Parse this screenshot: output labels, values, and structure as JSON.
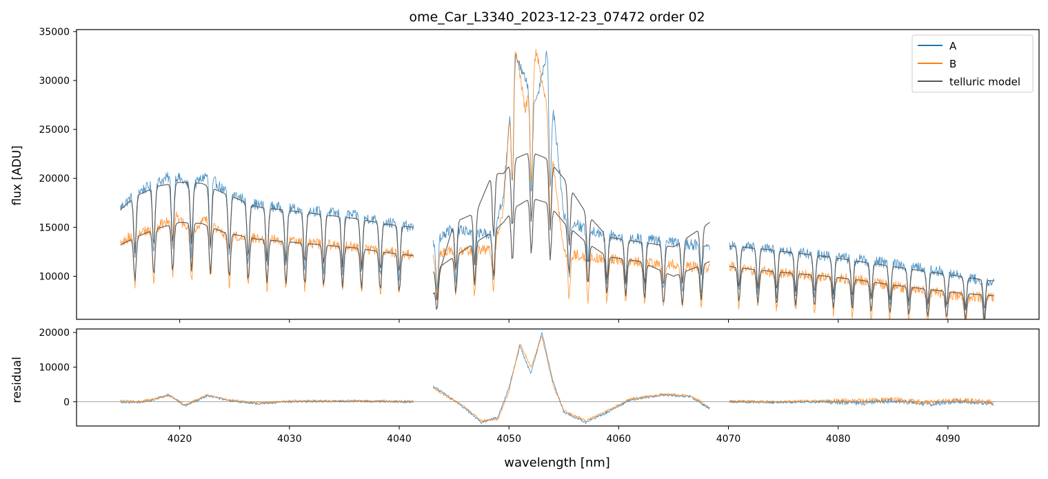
{
  "title": "ome_Car_L3340_2023-12-23_07472  order 02",
  "colors": {
    "A": "#1f77b4",
    "B": "#ff7f0e",
    "telluric": "#555555",
    "zero_line": "#808080"
  },
  "chart_data": [
    {
      "type": "line",
      "panel": "top",
      "title": "ome_Car_L3340_2023-12-23_07472  order 02",
      "xlabel": "",
      "ylabel": "flux [ADU]",
      "xlim": [
        4010.6,
        4098.3
      ],
      "ylim": [
        5600,
        35200
      ],
      "yticks": [
        10000,
        15000,
        20000,
        25000,
        30000,
        35000
      ],
      "xticks": [
        4020,
        4030,
        4040,
        4050,
        4060,
        4070,
        4080,
        4090
      ],
      "xticklabels_shown": false,
      "grid": false,
      "legend": {
        "placement": "top-right",
        "entries": [
          "A",
          "B",
          "telluric model"
        ]
      },
      "segments": [
        {
          "x_range": [
            4014.6,
            4041.3
          ],
          "series": [
            {
              "name": "A",
              "x": [
                4014.6,
                4016,
                4018,
                4019.5,
                4021,
                4022.5,
                4024,
                4027,
                4030,
                4033,
                4036,
                4039,
                4041.3
              ],
              "y": [
                17000,
                18500,
                19600,
                20400,
                19100,
                20400,
                18800,
                17300,
                16900,
                16600,
                16200,
                15500,
                15000
              ]
            },
            {
              "name": "B",
              "x": [
                4014.6,
                4016,
                4018,
                4019.5,
                4021,
                4022.5,
                4024,
                4027,
                4030,
                4033,
                4036,
                4039,
                4041.3
              ],
              "y": [
                13500,
                14300,
                15000,
                16300,
                14600,
                15800,
                14200,
                13900,
                13600,
                13300,
                13000,
                12500,
                12100
              ]
            },
            {
              "name": "telluric model",
              "x": [
                4014.6,
                4016,
                4018,
                4020,
                4022,
                4024,
                4027,
                4030,
                4033,
                4036,
                4039,
                4041.3
              ],
              "y": [
                16800,
                18200,
                19200,
                19600,
                19500,
                18500,
                17100,
                16700,
                16300,
                15900,
                15300,
                15000
              ]
            },
            {
              "name": "telluric model",
              "x": [
                4014.6,
                4016,
                4018,
                4020,
                4022,
                4024,
                4027,
                4030,
                4033,
                4036,
                4039,
                4041.3
              ],
              "y": [
                13200,
                14000,
                14900,
                15500,
                15400,
                14500,
                13800,
                13500,
                13200,
                12900,
                12400,
                12100
              ]
            }
          ]
        },
        {
          "x_range": [
            4043.1,
            4068.3
          ],
          "series": [
            {
              "name": "A",
              "x": [
                4043.1,
                4045,
                4047,
                4048.5,
                4049.5,
                4050.5,
                4051.5,
                4052.5,
                4053.5,
                4054.5,
                4055,
                4057,
                4060,
                4064,
                4068.3
              ],
              "y": [
                13500,
                15000,
                14500,
                14300,
                18000,
                33000,
                30000,
                28000,
                33000,
                22000,
                16000,
                14800,
                14000,
                13600,
                13000
              ]
            },
            {
              "name": "B",
              "x": [
                4043.1,
                4045,
                4047,
                4048.5,
                4049.5,
                4050.5,
                4051.5,
                4052.5,
                4053.5,
                4054.5,
                4055,
                4057,
                4060,
                4064,
                4068.3
              ],
              "y": [
                12000,
                12800,
                12600,
                12700,
                16500,
                34000,
                27000,
                33000,
                27000,
                17000,
                12500,
                12000,
                11700,
                11300,
                10800
              ]
            },
            {
              "name": "telluric model",
              "x": [
                4043.1,
                4045,
                4047,
                4048.5,
                4049.5,
                4050.5,
                4052,
                4053.5,
                4055,
                4057,
                4059,
                4062,
                4065,
                4068.3
              ],
              "y": [
                8200,
                15500,
                16500,
                20500,
                20500,
                22000,
                22700,
                22000,
                20000,
                16500,
                14000,
                13500,
                13000,
                15500
              ]
            },
            {
              "name": "telluric model",
              "x": [
                4043.1,
                4045,
                4047,
                4048.5,
                4049.5,
                4050.5,
                4052,
                4053.5,
                4055,
                4057,
                4059,
                4062,
                4065,
                4068.3
              ],
              "y": [
                10500,
                12000,
                13500,
                14500,
                15500,
                17000,
                18000,
                17500,
                15500,
                13500,
                12000,
                11500,
                10000,
                11500
              ]
            }
          ]
        },
        {
          "x_range": [
            4070.1,
            4094.2
          ],
          "series": [
            {
              "name": "A",
              "x": [
                4070.1,
                4073,
                4076,
                4079,
                4082,
                4085,
                4088,
                4091,
                4094.2
              ],
              "y": [
                13200,
                12900,
                12500,
                12100,
                11700,
                11300,
                10800,
                10100,
                9300
              ]
            },
            {
              "name": "B",
              "x": [
                4070.1,
                4073,
                4076,
                4079,
                4082,
                4085,
                4088,
                4091,
                4094.2
              ],
              "y": [
                11000,
                10500,
                10200,
                9900,
                9600,
                9000,
                8500,
                8000,
                7800
              ]
            },
            {
              "name": "telluric model",
              "x": [
                4070.1,
                4073,
                4076,
                4079,
                4082,
                4085,
                4088,
                4091,
                4094.2
              ],
              "y": [
                13100,
                12800,
                12400,
                12000,
                11500,
                11000,
                10500,
                10000,
                9500
              ]
            },
            {
              "name": "telluric model",
              "x": [
                4070.1,
                4073,
                4076,
                4079,
                4082,
                4085,
                4088,
                4091,
                4094.2
              ],
              "y": [
                11000,
                10600,
                10300,
                10000,
                9600,
                9100,
                8700,
                8300,
                8000
              ]
            }
          ]
        }
      ]
    },
    {
      "type": "line",
      "panel": "bottom",
      "xlabel": "wavelength [nm]",
      "ylabel": "residual",
      "xlim": [
        4010.6,
        4098.3
      ],
      "ylim": [
        -7000,
        21000
      ],
      "yticks": [
        0,
        10000,
        20000
      ],
      "xticks": [
        4020,
        4030,
        4040,
        4050,
        4060,
        4070,
        4080,
        4090
      ],
      "zero_line": true,
      "grid": false,
      "segments": [
        {
          "x_range": [
            4014.6,
            4041.3
          ],
          "series": [
            {
              "name": "A",
              "x": [
                4014.6,
                4016,
                4017.5,
                4019,
                4020.5,
                4022.5,
                4024.5,
                4027,
                4030,
                4035,
                4041.3
              ],
              "y": [
                0,
                -300,
                500,
                2000,
                -1200,
                1800,
                300,
                -500,
                0,
                200,
                0
              ]
            },
            {
              "name": "B",
              "x": [
                4014.6,
                4016,
                4017.5,
                4019,
                4020.5,
                4022.5,
                4024.5,
                4027,
                4030,
                4035,
                4041.3
              ],
              "y": [
                300,
                0,
                600,
                1900,
                -900,
                2000,
                500,
                -300,
                200,
                300,
                100
              ]
            }
          ]
        },
        {
          "x_range": [
            4043.1,
            4068.3
          ],
          "series": [
            {
              "name": "A",
              "x": [
                4043.1,
                4044.5,
                4046,
                4047.5,
                4049,
                4050,
                4051,
                4052,
                4053,
                4054,
                4055,
                4057,
                4059,
                4061,
                4064,
                4066.5,
                4068.3
              ],
              "y": [
                4500,
                1500,
                -2000,
                -6000,
                -4500,
                4000,
                16000,
                8000,
                20000,
                6000,
                -3000,
                -6000,
                -3000,
                500,
                2000,
                1500,
                -2000
              ]
            },
            {
              "name": "B",
              "x": [
                4043.1,
                4044.5,
                4046,
                4047.5,
                4049,
                4050,
                4051,
                4052,
                4053,
                4054,
                4055,
                4057,
                4059,
                4061,
                4064,
                4066.5,
                4068.3
              ],
              "y": [
                4000,
                1200,
                -1500,
                -5500,
                -5000,
                3000,
                17000,
                10000,
                19000,
                5000,
                -2500,
                -5500,
                -2500,
                800,
                2200,
                1800,
                -1500
              ]
            }
          ]
        },
        {
          "x_range": [
            4070.1,
            4094.2
          ],
          "series": [
            {
              "name": "A",
              "x": [
                4070.1,
                4074,
                4078,
                4082,
                4085,
                4088,
                4091,
                4094.2
              ],
              "y": [
                0,
                -200,
                0,
                -400,
                300,
                -800,
                200,
                -500
              ]
            },
            {
              "name": "B",
              "x": [
                4070.1,
                4074,
                4078,
                4082,
                4085,
                4088,
                4091,
                4094.2
              ],
              "y": [
                200,
                0,
                300,
                200,
                700,
                -200,
                500,
                0
              ]
            }
          ]
        }
      ]
    }
  ]
}
